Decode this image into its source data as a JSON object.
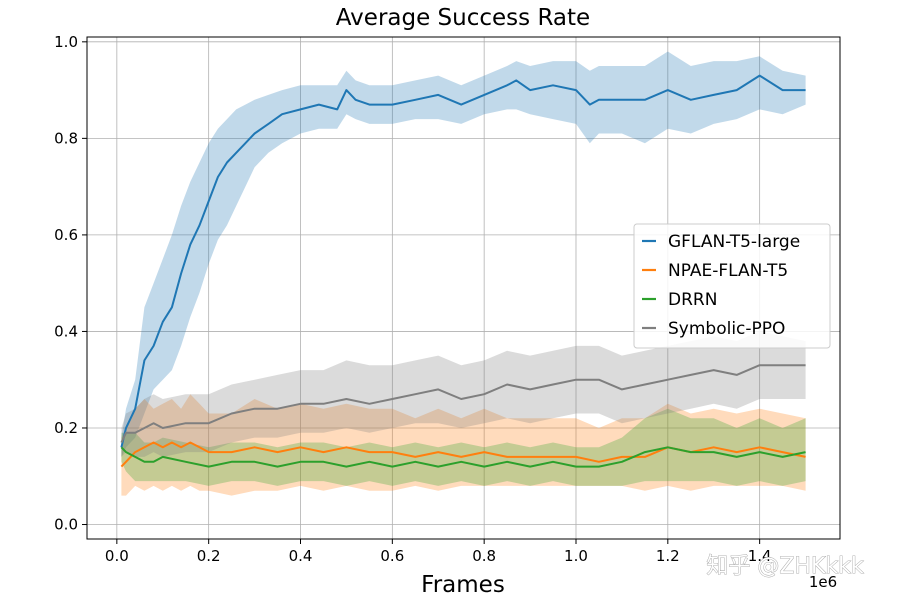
{
  "chart_data": {
    "type": "line",
    "title": "Average Success Rate",
    "xlabel": "Frames",
    "ylabel": "",
    "x_offset_label": "1e6",
    "xlim": [
      -0.065,
      1.575
    ],
    "ylim": [
      -0.03,
      1.01
    ],
    "xticks": [
      0.0,
      0.2,
      0.4,
      0.6,
      0.8,
      1.0,
      1.2,
      1.4
    ],
    "xtick_labels": [
      "0.0",
      "0.2",
      "0.4",
      "0.6",
      "0.8",
      "1.0",
      "1.2",
      "1.4"
    ],
    "yticks": [
      0.0,
      0.2,
      0.4,
      0.6,
      0.8,
      1.0
    ],
    "ytick_labels": [
      "0.0",
      "0.2",
      "0.4",
      "0.6",
      "0.8",
      "1.0"
    ],
    "grid": true,
    "legend_position": "center-right",
    "series": [
      {
        "name": "GFLAN-T5-large",
        "color": "#1f77b4",
        "x": [
          0.01,
          0.02,
          0.04,
          0.06,
          0.08,
          0.1,
          0.12,
          0.14,
          0.16,
          0.18,
          0.2,
          0.22,
          0.24,
          0.26,
          0.28,
          0.3,
          0.33,
          0.36,
          0.4,
          0.44,
          0.48,
          0.5,
          0.52,
          0.55,
          0.6,
          0.65,
          0.7,
          0.75,
          0.8,
          0.85,
          0.87,
          0.9,
          0.95,
          1.0,
          1.03,
          1.05,
          1.1,
          1.15,
          1.2,
          1.25,
          1.3,
          1.35,
          1.4,
          1.45,
          1.5
        ],
        "values": [
          0.16,
          0.2,
          0.24,
          0.34,
          0.37,
          0.42,
          0.45,
          0.52,
          0.58,
          0.62,
          0.67,
          0.72,
          0.75,
          0.77,
          0.79,
          0.81,
          0.83,
          0.85,
          0.86,
          0.87,
          0.86,
          0.9,
          0.88,
          0.87,
          0.87,
          0.88,
          0.89,
          0.87,
          0.89,
          0.91,
          0.92,
          0.9,
          0.91,
          0.9,
          0.87,
          0.88,
          0.88,
          0.88,
          0.9,
          0.88,
          0.89,
          0.9,
          0.93,
          0.9,
          0.9
        ],
        "lower": [
          0.14,
          0.16,
          0.18,
          0.23,
          0.28,
          0.3,
          0.32,
          0.37,
          0.43,
          0.48,
          0.54,
          0.59,
          0.62,
          0.66,
          0.7,
          0.74,
          0.77,
          0.79,
          0.81,
          0.82,
          0.82,
          0.85,
          0.84,
          0.83,
          0.83,
          0.84,
          0.84,
          0.83,
          0.85,
          0.86,
          0.86,
          0.85,
          0.84,
          0.83,
          0.79,
          0.81,
          0.81,
          0.79,
          0.82,
          0.81,
          0.83,
          0.84,
          0.86,
          0.85,
          0.87
        ],
        "upper": [
          0.18,
          0.24,
          0.3,
          0.45,
          0.5,
          0.55,
          0.6,
          0.66,
          0.71,
          0.75,
          0.79,
          0.82,
          0.84,
          0.86,
          0.87,
          0.88,
          0.89,
          0.9,
          0.91,
          0.91,
          0.91,
          0.94,
          0.92,
          0.91,
          0.91,
          0.92,
          0.93,
          0.91,
          0.93,
          0.95,
          0.96,
          0.95,
          0.96,
          0.96,
          0.94,
          0.95,
          0.95,
          0.95,
          0.98,
          0.95,
          0.96,
          0.96,
          0.97,
          0.94,
          0.93
        ]
      },
      {
        "name": "NPAE-FLAN-T5",
        "color": "#ff7f0e",
        "x": [
          0.01,
          0.02,
          0.04,
          0.06,
          0.08,
          0.1,
          0.12,
          0.14,
          0.16,
          0.18,
          0.2,
          0.25,
          0.3,
          0.35,
          0.4,
          0.45,
          0.5,
          0.55,
          0.6,
          0.65,
          0.7,
          0.75,
          0.8,
          0.85,
          0.9,
          0.95,
          1.0,
          1.05,
          1.1,
          1.15,
          1.2,
          1.25,
          1.3,
          1.35,
          1.4,
          1.45,
          1.5
        ],
        "values": [
          0.12,
          0.13,
          0.15,
          0.16,
          0.17,
          0.16,
          0.17,
          0.16,
          0.17,
          0.16,
          0.15,
          0.15,
          0.16,
          0.15,
          0.16,
          0.15,
          0.16,
          0.15,
          0.15,
          0.14,
          0.15,
          0.14,
          0.15,
          0.14,
          0.14,
          0.14,
          0.14,
          0.13,
          0.14,
          0.14,
          0.16,
          0.15,
          0.16,
          0.15,
          0.16,
          0.15,
          0.14
        ],
        "lower": [
          0.06,
          0.06,
          0.08,
          0.07,
          0.08,
          0.07,
          0.08,
          0.07,
          0.08,
          0.07,
          0.07,
          0.06,
          0.07,
          0.07,
          0.08,
          0.07,
          0.08,
          0.07,
          0.07,
          0.08,
          0.07,
          0.08,
          0.08,
          0.08,
          0.08,
          0.08,
          0.08,
          0.08,
          0.08,
          0.07,
          0.08,
          0.07,
          0.08,
          0.08,
          0.08,
          0.08,
          0.07
        ],
        "upper": [
          0.18,
          0.2,
          0.24,
          0.26,
          0.24,
          0.25,
          0.26,
          0.24,
          0.27,
          0.25,
          0.23,
          0.23,
          0.26,
          0.24,
          0.25,
          0.24,
          0.25,
          0.24,
          0.24,
          0.22,
          0.24,
          0.22,
          0.24,
          0.22,
          0.22,
          0.22,
          0.22,
          0.2,
          0.22,
          0.22,
          0.25,
          0.23,
          0.24,
          0.23,
          0.24,
          0.23,
          0.22
        ]
      },
      {
        "name": "DRRN",
        "color": "#2ca02c",
        "x": [
          0.01,
          0.02,
          0.04,
          0.06,
          0.08,
          0.1,
          0.15,
          0.2,
          0.25,
          0.3,
          0.35,
          0.4,
          0.45,
          0.5,
          0.55,
          0.6,
          0.65,
          0.7,
          0.75,
          0.8,
          0.85,
          0.9,
          0.95,
          1.0,
          1.05,
          1.1,
          1.15,
          1.2,
          1.25,
          1.3,
          1.35,
          1.4,
          1.45,
          1.5
        ],
        "values": [
          0.16,
          0.15,
          0.14,
          0.13,
          0.13,
          0.14,
          0.13,
          0.12,
          0.13,
          0.13,
          0.12,
          0.13,
          0.13,
          0.12,
          0.13,
          0.12,
          0.13,
          0.12,
          0.13,
          0.12,
          0.13,
          0.12,
          0.13,
          0.12,
          0.12,
          0.13,
          0.15,
          0.16,
          0.15,
          0.15,
          0.14,
          0.15,
          0.14,
          0.15
        ],
        "lower": [
          0.13,
          0.11,
          0.09,
          0.09,
          0.09,
          0.09,
          0.09,
          0.08,
          0.09,
          0.09,
          0.08,
          0.09,
          0.09,
          0.08,
          0.09,
          0.08,
          0.09,
          0.08,
          0.09,
          0.08,
          0.09,
          0.08,
          0.09,
          0.08,
          0.08,
          0.08,
          0.09,
          0.09,
          0.09,
          0.09,
          0.08,
          0.09,
          0.08,
          0.09
        ],
        "upper": [
          0.19,
          0.19,
          0.19,
          0.17,
          0.17,
          0.18,
          0.17,
          0.16,
          0.17,
          0.17,
          0.16,
          0.17,
          0.17,
          0.16,
          0.17,
          0.16,
          0.17,
          0.16,
          0.17,
          0.16,
          0.17,
          0.16,
          0.17,
          0.16,
          0.16,
          0.18,
          0.22,
          0.24,
          0.22,
          0.22,
          0.2,
          0.22,
          0.2,
          0.22
        ]
      },
      {
        "name": "Symbolic-PPO",
        "color": "#7f7f7f",
        "x": [
          0.01,
          0.02,
          0.04,
          0.06,
          0.08,
          0.1,
          0.15,
          0.2,
          0.25,
          0.3,
          0.35,
          0.4,
          0.45,
          0.5,
          0.55,
          0.6,
          0.65,
          0.7,
          0.75,
          0.8,
          0.85,
          0.9,
          0.95,
          1.0,
          1.05,
          1.1,
          1.15,
          1.2,
          1.25,
          1.3,
          1.35,
          1.4,
          1.45,
          1.5
        ],
        "values": [
          0.17,
          0.19,
          0.19,
          0.2,
          0.21,
          0.2,
          0.21,
          0.21,
          0.23,
          0.24,
          0.24,
          0.25,
          0.25,
          0.26,
          0.25,
          0.26,
          0.27,
          0.28,
          0.26,
          0.27,
          0.29,
          0.28,
          0.29,
          0.3,
          0.3,
          0.28,
          0.29,
          0.3,
          0.31,
          0.32,
          0.31,
          0.33,
          0.33,
          0.33
        ],
        "lower": [
          0.14,
          0.15,
          0.14,
          0.14,
          0.15,
          0.14,
          0.15,
          0.15,
          0.17,
          0.18,
          0.18,
          0.19,
          0.19,
          0.2,
          0.19,
          0.2,
          0.21,
          0.21,
          0.2,
          0.21,
          0.22,
          0.21,
          0.22,
          0.23,
          0.23,
          0.21,
          0.22,
          0.23,
          0.24,
          0.25,
          0.24,
          0.26,
          0.26,
          0.26
        ],
        "upper": [
          0.2,
          0.23,
          0.24,
          0.26,
          0.27,
          0.26,
          0.27,
          0.27,
          0.29,
          0.3,
          0.31,
          0.32,
          0.32,
          0.34,
          0.33,
          0.33,
          0.34,
          0.35,
          0.33,
          0.34,
          0.36,
          0.35,
          0.36,
          0.37,
          0.37,
          0.35,
          0.36,
          0.37,
          0.38,
          0.39,
          0.38,
          0.4,
          0.39,
          0.38
        ]
      }
    ]
  },
  "watermark": "知乎 @ZHKkkk"
}
